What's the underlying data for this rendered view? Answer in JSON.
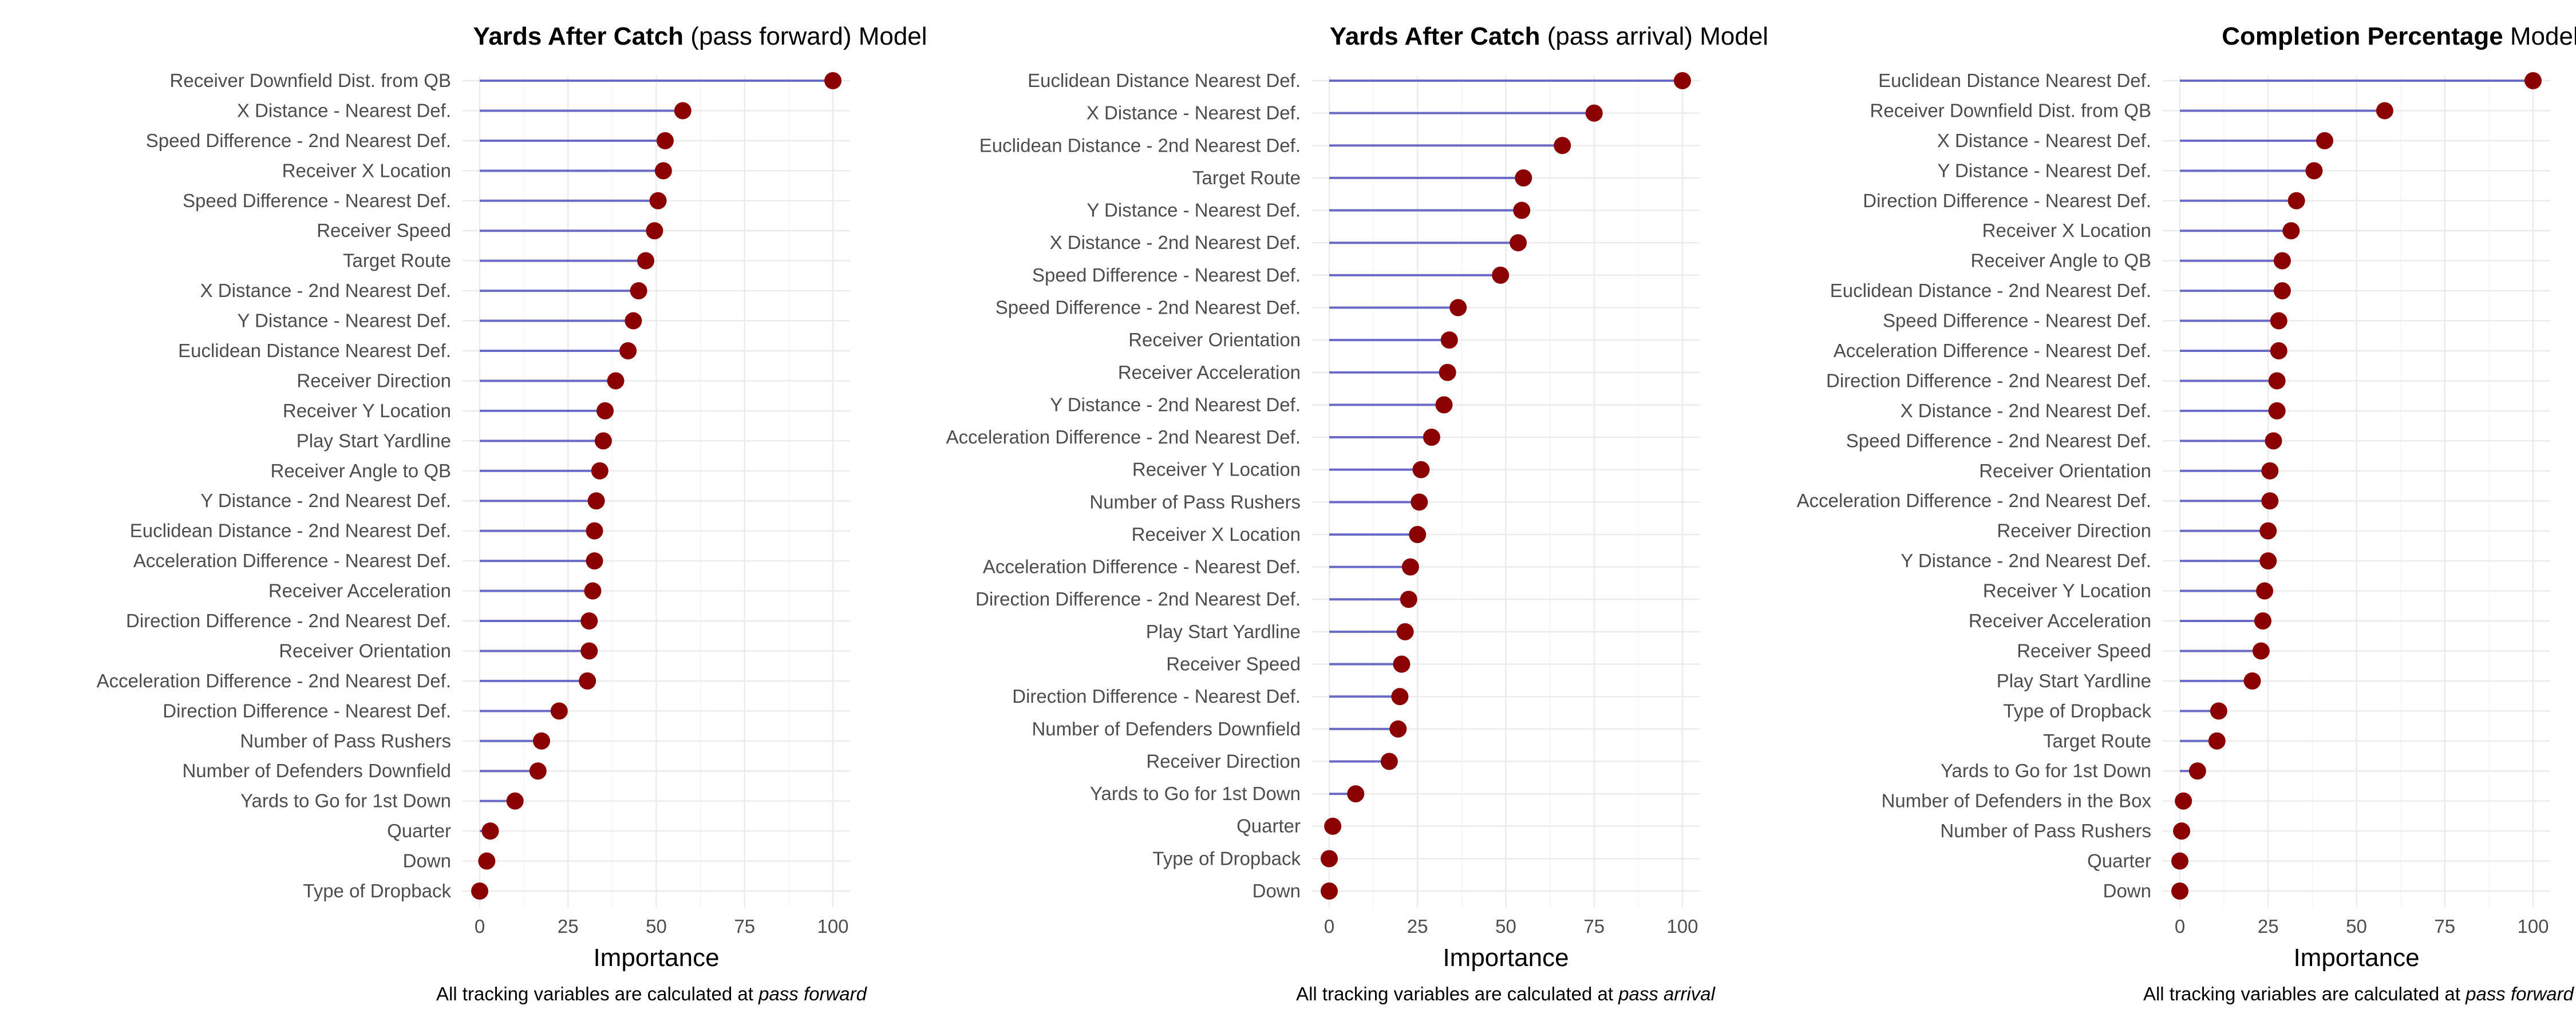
{
  "colors": {
    "segment": "#6a6ac6",
    "point": "#8b0000"
  },
  "chart_data": [
    {
      "type": "lollipop",
      "title_bold": "Yards After Catch",
      "title_rest": " (pass forward) Model",
      "xlabel": "Importance",
      "xlim": [
        0,
        100
      ],
      "xticks": [
        0,
        25,
        50,
        75,
        100
      ],
      "caption_prefix": "All tracking variables are calculated at ",
      "caption_italic": "pass forward",
      "categories": [
        "Receiver Downfield Dist. from QB",
        "X Distance - Nearest Def.",
        "Speed Difference - 2nd Nearest Def.",
        "Receiver X Location",
        "Speed Difference - Nearest Def.",
        "Receiver Speed",
        "Target Route",
        "X Distance - 2nd Nearest Def.",
        "Y Distance - Nearest Def.",
        "Euclidean Distance Nearest Def.",
        "Receiver Direction",
        "Receiver Y Location",
        "Play Start Yardline",
        "Receiver Angle to QB",
        "Y Distance - 2nd Nearest Def.",
        "Euclidean Distance - 2nd Nearest Def.",
        "Acceleration Difference - Nearest Def.",
        "Receiver Acceleration",
        "Direction Difference - 2nd Nearest Def.",
        "Receiver Orientation",
        "Acceleration Difference - 2nd Nearest Def.",
        "Direction Difference - Nearest Def.",
        "Number of Pass Rushers",
        "Number of Defenders Downfield",
        "Yards to Go for 1st Down",
        "Quarter",
        "Down",
        "Type of Dropback"
      ],
      "values": [
        100,
        57.5,
        52.5,
        52,
        50.5,
        49.5,
        47,
        45,
        43.5,
        42,
        38.5,
        35.5,
        35,
        34,
        33,
        32.5,
        32.5,
        32,
        31,
        31,
        30.5,
        22.5,
        17.5,
        16.5,
        10,
        3,
        2,
        0
      ]
    },
    {
      "type": "lollipop",
      "title_bold": "Yards After Catch",
      "title_rest": " (pass arrival) Model",
      "xlabel": "Importance",
      "xlim": [
        0,
        100
      ],
      "xticks": [
        0,
        25,
        50,
        75,
        100
      ],
      "caption_prefix": "All tracking variables are calculated at ",
      "caption_italic": "pass arrival",
      "categories": [
        "Euclidean Distance Nearest Def.",
        "X Distance - Nearest Def.",
        "Euclidean Distance - 2nd Nearest Def.",
        "Target Route",
        "Y Distance - Nearest Def.",
        "X Distance - 2nd Nearest Def.",
        "Speed Difference - Nearest Def.",
        "Speed Difference - 2nd Nearest Def.",
        "Receiver Orientation",
        "Receiver Acceleration",
        "Y Distance - 2nd Nearest Def.",
        "Acceleration Difference - 2nd Nearest Def.",
        "Receiver Y Location",
        "Number of Pass Rushers",
        "Receiver X Location",
        "Acceleration Difference - Nearest Def.",
        "Direction Difference - 2nd Nearest Def.",
        "Play Start Yardline",
        "Receiver Speed",
        "Direction Difference - Nearest Def.",
        "Number of Defenders Downfield",
        "Receiver Direction",
        "Yards to Go for 1st Down",
        "Quarter",
        "Type of Dropback",
        "Down"
      ],
      "values": [
        100,
        75,
        66,
        55,
        54.5,
        53.5,
        48.5,
        36.5,
        34,
        33.5,
        32.5,
        29,
        26,
        25.5,
        25,
        23,
        22.5,
        21.5,
        20.5,
        20,
        19.5,
        17,
        7.5,
        1,
        0,
        0
      ]
    },
    {
      "type": "lollipop",
      "title_bold": "Completion Percentage",
      "title_rest": " Model",
      "xlabel": "Importance",
      "xlim": [
        0,
        100
      ],
      "xticks": [
        0,
        25,
        50,
        75,
        100
      ],
      "caption_prefix": "All tracking variables are calculated at ",
      "caption_italic": "pass forward",
      "categories": [
        "Euclidean Distance Nearest Def.",
        "Receiver Downfield Dist. from QB",
        "X Distance - Nearest Def.",
        "Y Distance - Nearest Def.",
        "Direction Difference - Nearest Def.",
        "Receiver X Location",
        "Receiver Angle to QB",
        "Euclidean Distance - 2nd Nearest Def.",
        "Speed Difference - Nearest Def.",
        "Acceleration Difference - Nearest Def.",
        "Direction Difference - 2nd Nearest Def.",
        "X Distance - 2nd Nearest Def.",
        "Speed Difference - 2nd Nearest Def.",
        "Receiver Orientation",
        "Acceleration Difference - 2nd Nearest Def.",
        "Receiver Direction",
        "Y Distance - 2nd Nearest Def.",
        "Receiver Y Location",
        "Receiver Acceleration",
        "Receiver Speed",
        "Play Start Yardline",
        "Type of Dropback",
        "Target Route",
        "Yards to Go for 1st Down",
        "Number of Defenders in the Box",
        "Number of Pass Rushers",
        "Quarter",
        "Down"
      ],
      "values": [
        100,
        58,
        41,
        38,
        33,
        31.5,
        29,
        29,
        28,
        28,
        27.5,
        27.5,
        26.5,
        25.5,
        25.5,
        25,
        25,
        24,
        23.5,
        23,
        20.5,
        11,
        10.5,
        5,
        1,
        0.5,
        0,
        0
      ]
    }
  ]
}
